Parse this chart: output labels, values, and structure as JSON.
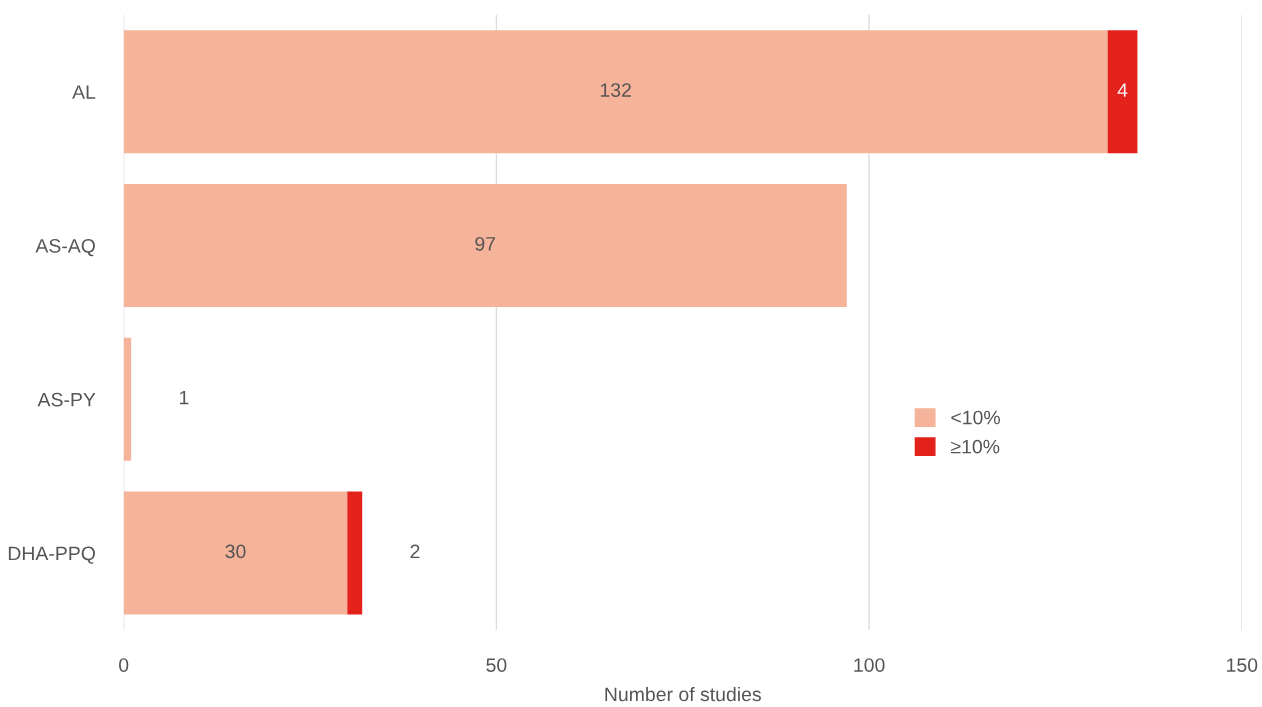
{
  "chart_data": {
    "type": "bar",
    "orientation": "horizontal",
    "stacked": true,
    "categories": [
      "AL",
      "AS-AQ",
      "AS-PY",
      "DHA-PPQ"
    ],
    "series": [
      {
        "name": "<10%",
        "color": "#f5b399",
        "values": [
          132,
          97,
          1,
          30
        ]
      },
      {
        "name": "≥10%",
        "color": "#e3231b",
        "values": [
          4,
          null,
          null,
          2
        ]
      }
    ],
    "xlabel": "Number of studies",
    "xlim": [
      0,
      150
    ],
    "xticks": [
      0,
      50,
      100,
      150
    ],
    "grid": "x",
    "legend": "right",
    "data_labels": true
  }
}
